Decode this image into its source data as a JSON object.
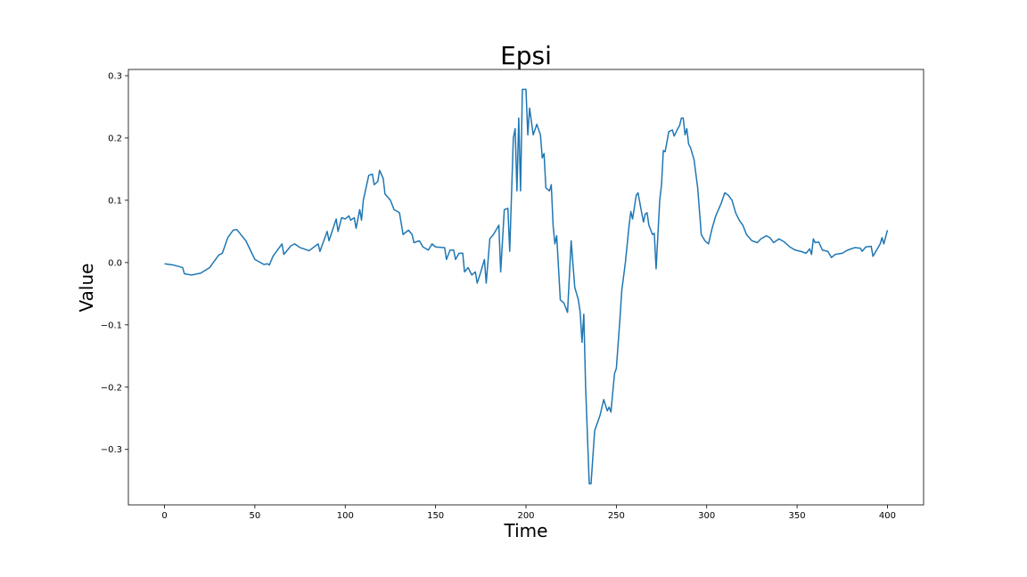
{
  "chart_data": {
    "type": "line",
    "title": "Epsi",
    "x_label": "Time",
    "y_label": "Value",
    "x": [
      0,
      5,
      10,
      11,
      15,
      20,
      25,
      30,
      32,
      35,
      38,
      40,
      45,
      50,
      55,
      57,
      58,
      60,
      65,
      66,
      70,
      72,
      75,
      80,
      85,
      86,
      90,
      91,
      95,
      96,
      98,
      100,
      102,
      103,
      105,
      106,
      108,
      109,
      110,
      113,
      115,
      116,
      118,
      119,
      121,
      122,
      125,
      127,
      130,
      132,
      135,
      137,
      138,
      141,
      143,
      146,
      148,
      150,
      155,
      156,
      158,
      160,
      161,
      163,
      165,
      166,
      168,
      170,
      172,
      173,
      175,
      177,
      178,
      180,
      182,
      185,
      186,
      188,
      190,
      191,
      193,
      194,
      195,
      196,
      197,
      198,
      200,
      201,
      202,
      204,
      206,
      208,
      209,
      210,
      211,
      213,
      214,
      215,
      216,
      217,
      219,
      221,
      223,
      225,
      227,
      229,
      230,
      231,
      232,
      233,
      235,
      236,
      238,
      241,
      243,
      245,
      246,
      247,
      249,
      250,
      252,
      253,
      255,
      257,
      258,
      259,
      261,
      262,
      264,
      265,
      266,
      267,
      268,
      270,
      271,
      272,
      274,
      275,
      276,
      277,
      279,
      281,
      282,
      284,
      285,
      286,
      287,
      288,
      289,
      290,
      291,
      293,
      295,
      297,
      299,
      301,
      303,
      305,
      308,
      310,
      312,
      314,
      316,
      318,
      320,
      322,
      325,
      328,
      330,
      333,
      335,
      337,
      340,
      343,
      346,
      349,
      352,
      355,
      357,
      358,
      359,
      360,
      362,
      364,
      367,
      369,
      371,
      375,
      378,
      382,
      385,
      386,
      388,
      391,
      392,
      394,
      396,
      397,
      398,
      400
    ],
    "series": [
      {
        "name": "Epsi",
        "color": "#1f77b4",
        "values": [
          -0.002,
          -0.004,
          -0.008,
          -0.018,
          -0.02,
          -0.017,
          -0.008,
          0.012,
          0.015,
          0.04,
          0.052,
          0.053,
          0.035,
          0.005,
          -0.003,
          -0.002,
          -0.004,
          0.01,
          0.03,
          0.013,
          0.027,
          0.03,
          0.024,
          0.019,
          0.03,
          0.018,
          0.05,
          0.035,
          0.07,
          0.05,
          0.072,
          0.07,
          0.075,
          0.068,
          0.072,
          0.055,
          0.085,
          0.068,
          0.1,
          0.14,
          0.142,
          0.125,
          0.13,
          0.148,
          0.135,
          0.11,
          0.1,
          0.085,
          0.08,
          0.045,
          0.052,
          0.045,
          0.032,
          0.035,
          0.025,
          0.02,
          0.03,
          0.025,
          0.024,
          0.005,
          0.02,
          0.02,
          0.005,
          0.015,
          0.015,
          -0.015,
          -0.008,
          -0.02,
          -0.015,
          -0.033,
          -0.015,
          0.005,
          -0.033,
          0.038,
          0.045,
          0.06,
          -0.015,
          0.085,
          0.087,
          0.018,
          0.2,
          0.215,
          0.115,
          0.232,
          0.115,
          0.278,
          0.278,
          0.205,
          0.248,
          0.205,
          0.222,
          0.205,
          0.168,
          0.175,
          0.12,
          0.115,
          0.125,
          0.06,
          0.03,
          0.043,
          -0.06,
          -0.065,
          -0.08,
          0.035,
          -0.04,
          -0.06,
          -0.08,
          -0.128,
          -0.083,
          -0.2,
          -0.355,
          -0.355,
          -0.27,
          -0.245,
          -0.22,
          -0.238,
          -0.232,
          -0.24,
          -0.178,
          -0.17,
          -0.09,
          -0.045,
          0.0,
          0.058,
          0.082,
          0.07,
          0.108,
          0.112,
          0.08,
          0.065,
          0.078,
          0.08,
          0.06,
          0.045,
          0.047,
          -0.01,
          0.1,
          0.125,
          0.18,
          0.178,
          0.21,
          0.213,
          0.203,
          0.215,
          0.22,
          0.232,
          0.232,
          0.205,
          0.215,
          0.19,
          0.185,
          0.165,
          0.12,
          0.045,
          0.035,
          0.03,
          0.055,
          0.075,
          0.095,
          0.112,
          0.108,
          0.1,
          0.08,
          0.068,
          0.06,
          0.045,
          0.035,
          0.032,
          0.038,
          0.043,
          0.04,
          0.032,
          0.038,
          0.033,
          0.025,
          0.02,
          0.018,
          0.015,
          0.022,
          0.013,
          0.038,
          0.032,
          0.033,
          0.02,
          0.018,
          0.008,
          0.013,
          0.015,
          0.02,
          0.024,
          0.023,
          0.018,
          0.025,
          0.026,
          0.01,
          0.02,
          0.03,
          0.04,
          0.03,
          0.052
        ]
      }
    ],
    "xlim": [
      -20,
      420
    ],
    "ylim": [
      -0.389,
      0.31
    ],
    "xticks": [
      0,
      50,
      100,
      150,
      200,
      250,
      300,
      350,
      400
    ],
    "yticks": [
      {
        "value": -0.3,
        "label": "−0.3"
      },
      {
        "value": -0.2,
        "label": "−0.2"
      },
      {
        "value": -0.1,
        "label": "−0.1"
      },
      {
        "value": 0.0,
        "label": "0.0"
      },
      0.1,
      0.2,
      0.3
    ],
    "grid": false
  }
}
